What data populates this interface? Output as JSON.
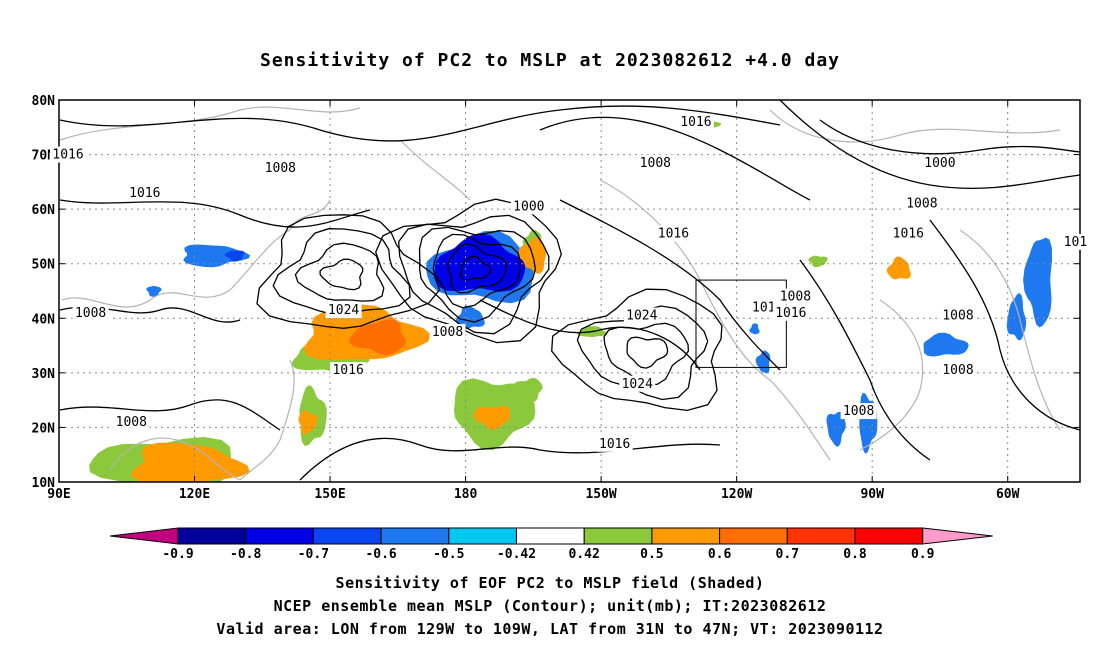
{
  "chart_data": {
    "type": "heatmap",
    "title": "Sensitivity of PC2 to MSLP at 2023082612 +4.0 day",
    "x_ticks": [
      "90E",
      "120E",
      "150E",
      "180",
      "150W",
      "120W",
      "90W",
      "60W"
    ],
    "x_tick_values": [
      90,
      120,
      150,
      180,
      210,
      240,
      270,
      300
    ],
    "y_ticks": [
      "10N",
      "20N",
      "30N",
      "40N",
      "50N",
      "60N",
      "70N",
      "80N"
    ],
    "y_tick_values": [
      10,
      20,
      30,
      40,
      50,
      60,
      70,
      80
    ],
    "xlim": [
      90,
      316
    ],
    "ylim": [
      10,
      80
    ],
    "grid": true,
    "colorbar": {
      "labels": [
        "-0.9",
        "-0.8",
        "-0.7",
        "-0.6",
        "-0.5",
        "-0.42",
        "0.42",
        "0.5",
        "0.6",
        "0.7",
        "0.8",
        "0.9"
      ],
      "colors": [
        "#c0007c",
        "#00009a",
        "#0000e6",
        "#0a46f0",
        "#1e78f0",
        "#00c8f0",
        "#ffffff",
        "#8cc83c",
        "#ff9b00",
        "#ff6e00",
        "#ff3200",
        "#ff0000",
        "#ff9bcc"
      ]
    },
    "contour_labels": [
      {
        "text": "1016",
        "lon": 92,
        "lat": 70
      },
      {
        "text": "1008",
        "lon": 139,
        "lat": 67.5
      },
      {
        "text": "1016",
        "lon": 231,
        "lat": 76
      },
      {
        "text": "1008",
        "lon": 222,
        "lat": 68.5
      },
      {
        "text": "1000",
        "lon": 285,
        "lat": 68.5
      },
      {
        "text": "1008",
        "lon": 281,
        "lat": 61
      },
      {
        "text": "1016",
        "lon": 109,
        "lat": 63
      },
      {
        "text": "1000",
        "lon": 194,
        "lat": 60.5
      },
      {
        "text": "1016",
        "lon": 226,
        "lat": 55.5
      },
      {
        "text": "1016",
        "lon": 278,
        "lat": 55.5
      },
      {
        "text": "101",
        "lon": 315,
        "lat": 54
      },
      {
        "text": "1008",
        "lon": 97,
        "lat": 41
      },
      {
        "text": "1024",
        "lon": 153,
        "lat": 41.5
      },
      {
        "text": "1008",
        "lon": 176,
        "lat": 37.5
      },
      {
        "text": "1024",
        "lon": 219,
        "lat": 40.5
      },
      {
        "text": "101",
        "lon": 246,
        "lat": 42
      },
      {
        "text": "1008",
        "lon": 253,
        "lat": 44
      },
      {
        "text": "1016",
        "lon": 252,
        "lat": 41
      },
      {
        "text": "1008",
        "lon": 289,
        "lat": 40.5
      },
      {
        "text": "1016",
        "lon": 154,
        "lat": 30.5
      },
      {
        "text": "1024",
        "lon": 218,
        "lat": 28
      },
      {
        "text": "1008",
        "lon": 289,
        "lat": 30.5
      },
      {
        "text": "1008",
        "lon": 267,
        "lat": 23
      },
      {
        "text": "1008",
        "lon": 106,
        "lat": 21
      },
      {
        "text": "1016",
        "lon": 213,
        "lat": 17
      }
    ],
    "pressure_centers": [
      {
        "kind": "low",
        "lon": 182,
        "lat": 49
      },
      {
        "kind": "high",
        "lon": 220,
        "lat": 34
      },
      {
        "kind": "high",
        "lon": 153,
        "lat": 48
      }
    ],
    "shaded_regions": [
      {
        "value": 0.6,
        "lon": 157,
        "lat": 37,
        "rx": 13,
        "ry": 5
      },
      {
        "value": 0.7,
        "lon": 161,
        "lat": 36.5,
        "rx": 6,
        "ry": 3
      },
      {
        "value": 0.5,
        "lon": 150,
        "lat": 33,
        "rx": 8,
        "ry": 3
      },
      {
        "value": 0.5,
        "lon": 146,
        "lat": 22,
        "rx": 3,
        "ry": 5
      },
      {
        "value": 0.6,
        "lon": 145,
        "lat": 21,
        "rx": 2,
        "ry": 2
      },
      {
        "value": 0.5,
        "lon": 186,
        "lat": 23,
        "rx": 9,
        "ry": 6
      },
      {
        "value": 0.6,
        "lon": 186,
        "lat": 22,
        "rx": 4,
        "ry": 2
      },
      {
        "value": 0.5,
        "lon": 194,
        "lat": 27,
        "rx": 3,
        "ry": 2
      },
      {
        "value": 0.6,
        "lon": 195,
        "lat": 51.5,
        "rx": 3,
        "ry": 3
      },
      {
        "value": 0.5,
        "lon": 195,
        "lat": 54,
        "rx": 2,
        "ry": 2
      },
      {
        "value": 0.5,
        "lon": 208,
        "lat": 37.5,
        "rx": 3,
        "ry": 1
      },
      {
        "value": 0.5,
        "lon": 233,
        "lat": 75.5,
        "rx": 3,
        "ry": 1
      },
      {
        "value": 0.5,
        "lon": 258,
        "lat": 50.5,
        "rx": 2,
        "ry": 1
      },
      {
        "value": 0.6,
        "lon": 276,
        "lat": 49,
        "rx": 2.5,
        "ry": 2
      },
      {
        "value": 0.6,
        "lon": 118,
        "lat": 13,
        "rx": 12,
        "ry": 4
      },
      {
        "value": 0.5,
        "lon": 114,
        "lat": 13,
        "rx": 16,
        "ry": 5
      },
      {
        "value": -0.7,
        "lon": 183,
        "lat": 49.5,
        "rx": 10,
        "ry": 5
      },
      {
        "value": -0.6,
        "lon": 183,
        "lat": 48.5,
        "rx": 6,
        "ry": 3
      },
      {
        "value": -0.5,
        "lon": 184,
        "lat": 49,
        "rx": 12,
        "ry": 6
      },
      {
        "value": -0.5,
        "lon": 181,
        "lat": 40,
        "rx": 3,
        "ry": 2
      },
      {
        "value": -0.5,
        "lon": 124,
        "lat": 51.5,
        "rx": 7,
        "ry": 2
      },
      {
        "value": -0.6,
        "lon": 129,
        "lat": 51.5,
        "rx": 2,
        "ry": 1
      },
      {
        "value": -0.5,
        "lon": 111,
        "lat": 45,
        "rx": 1.5,
        "ry": 1
      },
      {
        "value": -0.5,
        "lon": 307,
        "lat": 47,
        "rx": 3,
        "ry": 8
      },
      {
        "value": -0.5,
        "lon": 302,
        "lat": 40,
        "rx": 2,
        "ry": 4
      },
      {
        "value": -0.5,
        "lon": 286,
        "lat": 35,
        "rx": 5,
        "ry": 2
      },
      {
        "value": -0.5,
        "lon": 269,
        "lat": 21,
        "rx": 2,
        "ry": 5
      },
      {
        "value": -0.5,
        "lon": 262,
        "lat": 20,
        "rx": 2,
        "ry": 3
      },
      {
        "value": -0.5,
        "lon": 246,
        "lat": 32,
        "rx": 1.5,
        "ry": 2
      },
      {
        "value": -0.5,
        "lon": 244,
        "lat": 38,
        "rx": 1,
        "ry": 1
      }
    ],
    "valid_area": {
      "lon": [
        231,
        251
      ],
      "lat": [
        31,
        47
      ]
    }
  },
  "footer": {
    "line1": "Sensitivity of EOF PC2 to MSLP field (Shaded)",
    "line2": "NCEP ensemble mean MSLP (Contour); unit(mb); IT:2023082612",
    "line3": "Valid area: LON from 129W to 109W, LAT from 31N to 47N; VT: 2023090112"
  }
}
